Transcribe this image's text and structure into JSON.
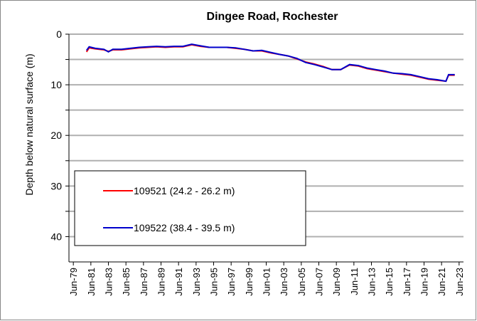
{
  "chart_data": {
    "type": "line",
    "title": "Dingee Road, Rochester",
    "y_label": "Depth below natural surface (m)",
    "ylim": [
      0,
      45
    ],
    "y_inverted": true,
    "yticks": [
      0,
      10,
      20,
      30,
      40
    ],
    "minor_yticks": [
      5,
      15,
      25,
      35
    ],
    "grid": true,
    "xlim": [
      1979,
      2024
    ],
    "xticks": [
      {
        "value": 1979.5,
        "label": "Jun-79"
      },
      {
        "value": 1981.5,
        "label": "Jun-81"
      },
      {
        "value": 1983.5,
        "label": "Jun-83"
      },
      {
        "value": 1985.5,
        "label": "Jun-85"
      },
      {
        "value": 1987.5,
        "label": "Jun-87"
      },
      {
        "value": 1989.5,
        "label": "Jun-89"
      },
      {
        "value": 1991.5,
        "label": "Jun-91"
      },
      {
        "value": 1993.5,
        "label": "Jun-93"
      },
      {
        "value": 1995.5,
        "label": "Jun-95"
      },
      {
        "value": 1997.5,
        "label": "Jun-97"
      },
      {
        "value": 1999.5,
        "label": "Jun-99"
      },
      {
        "value": 2001.5,
        "label": "Jun-01"
      },
      {
        "value": 2003.5,
        "label": "Jun-03"
      },
      {
        "value": 2005.5,
        "label": "Jun-05"
      },
      {
        "value": 2007.5,
        "label": "Jun-07"
      },
      {
        "value": 2009.5,
        "label": "Jun-09"
      },
      {
        "value": 2011.5,
        "label": "Jun-11"
      },
      {
        "value": 2013.5,
        "label": "Jun-13"
      },
      {
        "value": 2015.5,
        "label": "Jun-15"
      },
      {
        "value": 2017.5,
        "label": "Jun-17"
      },
      {
        "value": 2019.5,
        "label": "Jun-19"
      },
      {
        "value": 2021.5,
        "label": "Jun-21"
      },
      {
        "value": 2023.5,
        "label": "Jun-23"
      }
    ],
    "legend": "lower-left",
    "series": [
      {
        "name": "109521 (24.2 - 26.2 m)",
        "color": "#ff0000",
        "x": [
          1981.0,
          1981.3,
          1982,
          1983,
          1983.5,
          1984,
          1985,
          1986,
          1987,
          1988,
          1989,
          1990,
          1991,
          1992,
          1993,
          1994,
          1995,
          1996,
          1997,
          1998,
          1999,
          2000,
          2001,
          2002,
          2003,
          2004,
          2005,
          2006,
          2007,
          2008,
          2009,
          2010,
          2011,
          2012,
          2013,
          2014,
          2015,
          2016,
          2017,
          2018,
          2019,
          2020,
          2021,
          2022,
          2022.3,
          2023
        ],
        "values": [
          3.5,
          2.7,
          2.9,
          3.1,
          3.4,
          3.1,
          3.1,
          2.9,
          2.7,
          2.6,
          2.5,
          2.6,
          2.5,
          2.5,
          2.1,
          2.4,
          2.6,
          2.6,
          2.6,
          2.8,
          3.0,
          3.3,
          3.3,
          3.7,
          4.0,
          4.3,
          4.9,
          5.5,
          5.9,
          6.4,
          7.0,
          7.0,
          6.1,
          6.3,
          6.8,
          7.1,
          7.4,
          7.7,
          7.9,
          8.1,
          8.5,
          8.9,
          9.1,
          9.3,
          8.1,
          8.1
        ]
      },
      {
        "name": "109522 (38.4 - 39.5 m)",
        "color": "#0000cc",
        "x": [
          1981.0,
          1981.3,
          1982,
          1983,
          1983.5,
          1984,
          1985,
          1986,
          1987,
          1988,
          1989,
          1990,
          1991,
          1992,
          1993,
          1994,
          1995,
          1996,
          1997,
          1998,
          1999,
          2000,
          2001,
          2002,
          2003,
          2004,
          2005,
          2006,
          2007,
          2008,
          2009,
          2010,
          2011,
          2012,
          2013,
          2014,
          2015,
          2016,
          2017,
          2018,
          2019,
          2020,
          2021,
          2022,
          2022.3,
          2023
        ],
        "values": [
          3.2,
          2.5,
          2.8,
          3.0,
          3.5,
          3.0,
          3.0,
          2.8,
          2.6,
          2.5,
          2.4,
          2.5,
          2.4,
          2.4,
          2.0,
          2.3,
          2.6,
          2.6,
          2.6,
          2.7,
          3.0,
          3.3,
          3.2,
          3.6,
          4.0,
          4.3,
          4.8,
          5.6,
          6.0,
          6.5,
          7.0,
          7.0,
          6.0,
          6.2,
          6.7,
          7.0,
          7.3,
          7.7,
          7.8,
          8.0,
          8.4,
          8.8,
          9.0,
          9.3,
          8.0,
          8.0
        ]
      }
    ]
  }
}
